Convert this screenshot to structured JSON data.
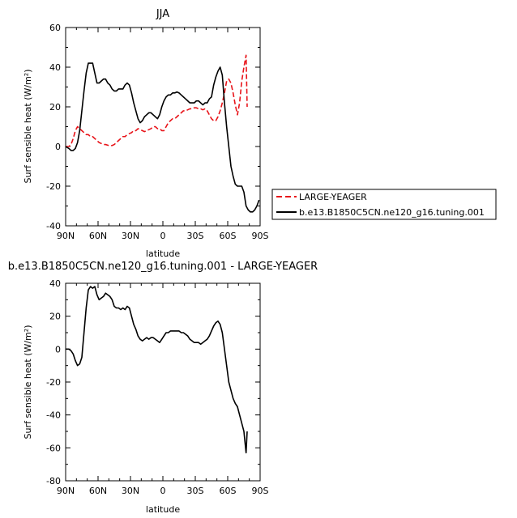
{
  "chart_data": [
    {
      "type": "line",
      "title": "JJA",
      "xlabel": "latitude",
      "ylabel": "Surf sensible heat (W/m²)",
      "xlim": [
        90,
        -90
      ],
      "ylim": [
        -40,
        60
      ],
      "xticks": [
        90,
        60,
        30,
        0,
        -30,
        -60,
        -90
      ],
      "xtick_labels": [
        "90N",
        "60N",
        "30N",
        "0",
        "30S",
        "60S",
        "90S"
      ],
      "yticks": [
        -40,
        -20,
        0,
        20,
        40,
        60
      ],
      "legend": "right",
      "legend_entries": [
        "LARGE-YEAGER",
        "b.e13.B1850C5CN.ne120_g16.tuning.001"
      ],
      "series": [
        {
          "name": "LARGE-YEAGER",
          "color": "#e8141a",
          "style": "dashed",
          "x": [
            90,
            87,
            85,
            83,
            81,
            79,
            77,
            75,
            73,
            71,
            69,
            67,
            65,
            63,
            61,
            59,
            57,
            55,
            53,
            50,
            47,
            45,
            43,
            41,
            39,
            37,
            35,
            33,
            31,
            29,
            27,
            25,
            23,
            21,
            19,
            17,
            15,
            13,
            11,
            9,
            7,
            5,
            3,
            1,
            -1,
            -3,
            -5,
            -7,
            -9,
            -11,
            -13,
            -15,
            -17,
            -19,
            -21,
            -23,
            -25,
            -27,
            -29,
            -31,
            -33,
            -35,
            -37,
            -39,
            -41,
            -43,
            -45,
            -47,
            -49,
            -51,
            -53,
            -55,
            -57,
            -59,
            -61,
            -63,
            -65,
            -67,
            -69,
            -71,
            -73,
            -75,
            -77,
            -78
          ],
          "y": [
            0,
            0,
            1,
            4,
            8,
            10,
            9,
            8,
            7,
            6,
            6,
            5,
            5,
            4,
            3,
            2,
            1.5,
            1,
            1,
            0.5,
            0.5,
            1,
            2,
            3,
            4,
            5,
            5,
            6,
            6.5,
            7,
            8,
            8,
            9,
            8.5,
            8,
            7.5,
            8,
            8.5,
            9,
            10,
            10,
            9,
            9,
            8,
            8,
            10,
            12,
            13,
            14,
            14,
            15,
            16,
            17,
            18,
            18,
            18.5,
            19,
            19,
            19.5,
            19.5,
            19,
            19,
            18.5,
            19,
            18,
            16,
            14,
            13,
            13,
            15,
            18,
            22,
            27,
            33,
            34,
            32,
            27,
            21,
            16,
            22,
            33,
            40,
            46,
            20
          ]
        },
        {
          "name": "b.e13.B1850C5CN.ne120_g16.tuning.001",
          "color": "#000000",
          "style": "solid",
          "x": [
            90,
            87,
            85,
            83,
            81,
            79,
            77,
            75,
            73,
            71,
            69,
            67,
            65,
            63,
            61,
            59,
            57,
            55,
            53,
            51,
            49,
            47,
            45,
            43,
            41,
            39,
            37,
            35,
            33,
            31,
            29,
            27,
            25,
            23,
            21,
            19,
            17,
            15,
            13,
            11,
            9,
            7,
            5,
            3,
            1,
            -1,
            -3,
            -5,
            -7,
            -9,
            -11,
            -13,
            -15,
            -17,
            -19,
            -21,
            -23,
            -25,
            -27,
            -29,
            -31,
            -33,
            -35,
            -37,
            -39,
            -41,
            -43,
            -45,
            -47,
            -49,
            -51,
            -53,
            -55,
            -57,
            -59,
            -61,
            -63,
            -65,
            -67,
            -69,
            -71,
            -73,
            -75,
            -77,
            -79,
            -81,
            -83,
            -85,
            -87,
            -89
          ],
          "y": [
            0,
            -1,
            -2,
            -2,
            -1,
            2,
            8,
            18,
            28,
            37,
            42,
            42,
            42,
            37,
            32,
            32,
            33,
            34,
            34,
            32,
            31,
            29,
            28,
            28,
            29,
            29,
            29,
            31,
            32,
            31,
            27,
            22,
            18,
            14,
            12,
            13,
            15,
            16,
            17,
            17,
            16,
            15,
            14,
            16,
            20,
            23,
            25,
            26,
            26,
            27,
            27,
            27.5,
            27,
            26,
            25,
            24,
            23,
            22,
            22,
            22,
            23,
            23,
            22,
            21,
            22,
            22,
            24,
            25,
            31,
            35,
            38,
            40,
            36,
            22,
            10,
            0,
            -10,
            -15,
            -19,
            -20,
            -20,
            -20,
            -23,
            -30,
            -32,
            -33,
            -33,
            -32,
            -30,
            -27
          ]
        }
      ]
    },
    {
      "type": "line",
      "title": "b.e13.B1850C5CN.ne120_g16.tuning.001 - LARGE-YEAGER",
      "xlabel": "latitude",
      "ylabel": "Surf sensible heat (W/m²)",
      "xlim": [
        90,
        -90
      ],
      "ylim": [
        -80,
        40
      ],
      "xticks": [
        90,
        60,
        30,
        0,
        -30,
        -60,
        -90
      ],
      "xtick_labels": [
        "90N",
        "60N",
        "30N",
        "0",
        "30S",
        "60S",
        "90S"
      ],
      "yticks": [
        -80,
        -60,
        -40,
        -20,
        0,
        20,
        40
      ],
      "series": [
        {
          "color": "#000000",
          "style": "solid",
          "x": [
            90,
            87,
            85,
            83,
            81,
            79,
            77,
            75,
            73,
            71,
            69,
            67,
            65,
            63,
            61,
            59,
            57,
            55,
            53,
            51,
            49,
            47,
            45,
            43,
            41,
            39,
            37,
            35,
            33,
            31,
            29,
            27,
            25,
            23,
            21,
            19,
            17,
            15,
            13,
            11,
            9,
            7,
            5,
            3,
            1,
            -1,
            -3,
            -5,
            -7,
            -9,
            -11,
            -13,
            -15,
            -17,
            -19,
            -21,
            -23,
            -25,
            -27,
            -29,
            -31,
            -33,
            -35,
            -37,
            -39,
            -41,
            -43,
            -45,
            -47,
            -49,
            -51,
            -53,
            -55,
            -57,
            -59,
            -61,
            -63,
            -65,
            -67,
            -69,
            -71,
            -73,
            -75,
            -77,
            -78
          ],
          "y": [
            0,
            0,
            -1,
            -3,
            -7,
            -10,
            -9,
            -5,
            10,
            25,
            36,
            38,
            37,
            38,
            33,
            30,
            31,
            32,
            34,
            33,
            32,
            30,
            26,
            25,
            25,
            24,
            25,
            24,
            26,
            25,
            20,
            15,
            12,
            8,
            6,
            5,
            6,
            7,
            6,
            7,
            7,
            6,
            5,
            4,
            6,
            8,
            10,
            10,
            11,
            11,
            11,
            11,
            11,
            10,
            10,
            9,
            8,
            6,
            5,
            4,
            4,
            4,
            3,
            4,
            5,
            6,
            8,
            11,
            14,
            16,
            17,
            15,
            10,
            0,
            -10,
            -20,
            -25,
            -30,
            -33,
            -35,
            -40,
            -45,
            -50,
            -63,
            -50
          ]
        }
      ]
    }
  ]
}
